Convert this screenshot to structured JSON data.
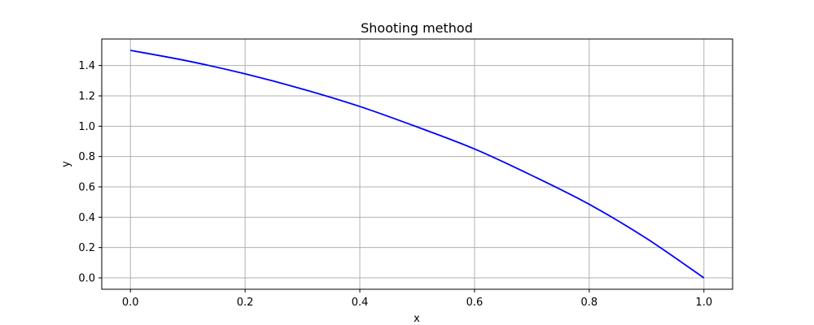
{
  "chart_data": {
    "type": "line",
    "title": "Shooting method",
    "xlabel": "x",
    "ylabel": "y",
    "xlim": [
      -0.05,
      1.05
    ],
    "ylim": [
      -0.075,
      1.575
    ],
    "xticks": [
      0.0,
      0.2,
      0.4,
      0.6,
      0.8,
      1.0
    ],
    "xtick_labels": [
      "0.0",
      "0.2",
      "0.4",
      "0.6",
      "0.8",
      "1.0"
    ],
    "yticks": [
      0.0,
      0.2,
      0.4,
      0.6,
      0.8,
      1.0,
      1.2,
      1.4
    ],
    "ytick_labels": [
      "0.0",
      "0.2",
      "0.4",
      "0.6",
      "0.8",
      "1.0",
      "1.2",
      "1.4"
    ],
    "grid": true,
    "series": [
      {
        "color": "#0000ff",
        "x": [
          0.0,
          0.1,
          0.2,
          0.3,
          0.4,
          0.5,
          0.6,
          0.7,
          0.8,
          0.9,
          1.0
        ],
        "y": [
          1.5,
          1.43,
          1.345,
          1.245,
          1.13,
          0.995,
          0.85,
          0.675,
          0.485,
          0.26,
          0.0
        ]
      }
    ]
  }
}
